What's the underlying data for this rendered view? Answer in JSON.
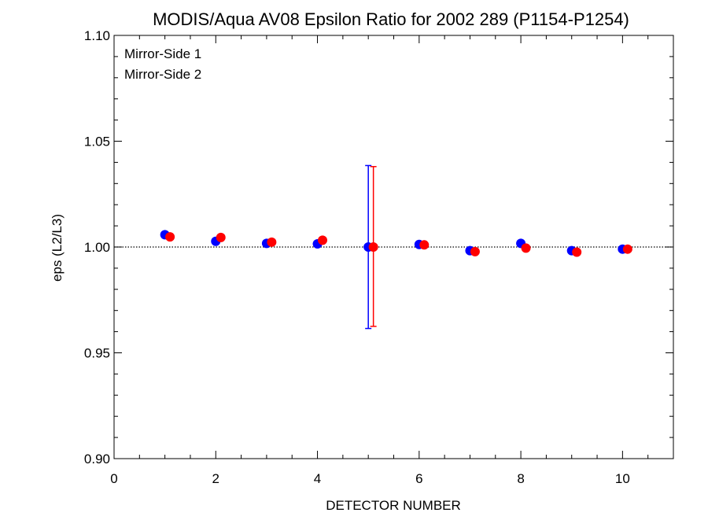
{
  "chart_data": {
    "type": "scatter",
    "title": "MODIS/Aqua AV08 Epsilon Ratio for 2002 289 (P1154-P1254)",
    "xlabel": "DETECTOR NUMBER",
    "ylabel": "eps (L2/L3)",
    "xlim": [
      0,
      11
    ],
    "ylim": [
      0.9,
      1.1
    ],
    "x_ticks": [
      0,
      2,
      4,
      6,
      8,
      10
    ],
    "x_tick_labels": [
      "0",
      "2",
      "4",
      "6",
      "8",
      "10"
    ],
    "y_ticks": [
      0.9,
      0.95,
      1.0,
      1.05,
      1.1
    ],
    "y_tick_labels": [
      "0.90",
      "0.95",
      "1.00",
      "1.05",
      "1.10"
    ],
    "reference_line": 1.0,
    "legend_position": "top-left",
    "series": [
      {
        "name": "Mirror-Side 1",
        "color": "#0000ff",
        "x_offset": 0,
        "x": [
          1,
          2,
          3,
          4,
          5,
          6,
          7,
          8,
          9,
          10
        ],
        "y": [
          1.0058,
          1.0027,
          1.0017,
          1.0015,
          1.0,
          1.0012,
          0.9983,
          1.0017,
          0.9983,
          0.999
        ],
        "error_bars": [
          {
            "x": 5,
            "low": 0.9615,
            "high": 1.0385
          }
        ]
      },
      {
        "name": "Mirror-Side 2",
        "color": "#ff0000",
        "x_offset": 0.1,
        "x": [
          1,
          2,
          3,
          4,
          5,
          6,
          7,
          8,
          9,
          10
        ],
        "y": [
          1.0048,
          1.0045,
          1.0023,
          1.0032,
          1.0,
          1.001,
          0.9978,
          0.9995,
          0.9976,
          0.999
        ],
        "error_bars": [
          {
            "x": 5,
            "low": 0.9625,
            "high": 1.038
          }
        ]
      }
    ]
  }
}
